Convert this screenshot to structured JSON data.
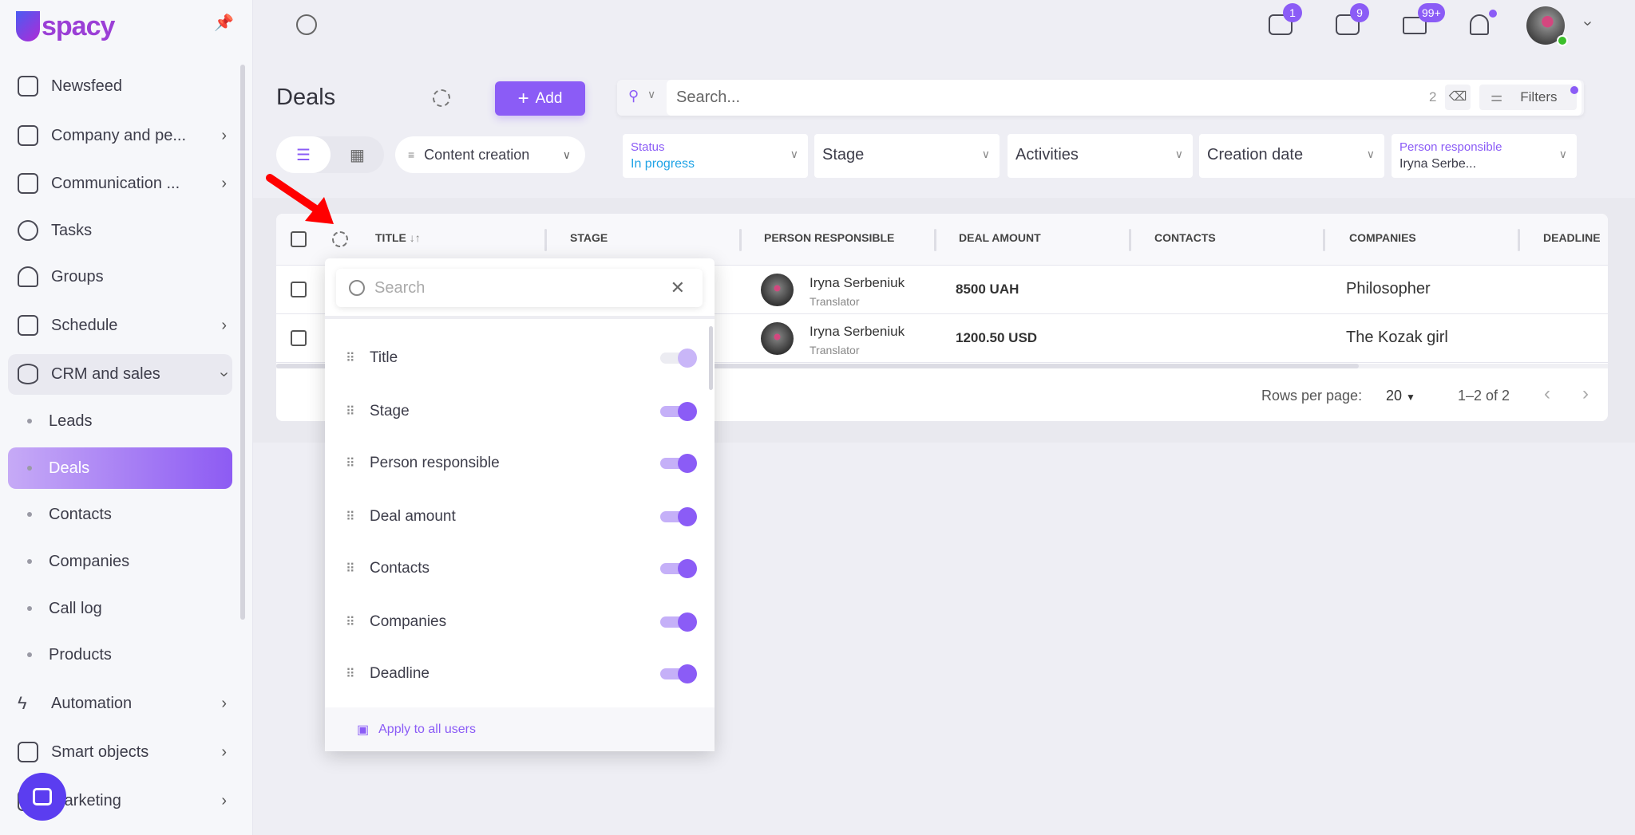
{
  "app": {
    "logo": "uspacy",
    "accent": "#8b5cf6"
  },
  "sidebar": {
    "items": [
      {
        "label": "Newsfeed",
        "icon": "home-icon",
        "chevron": false
      },
      {
        "label": "Company and pe...",
        "icon": "building-icon",
        "chevron": true
      },
      {
        "label": "Communication ...",
        "icon": "chat-edit-icon",
        "chevron": true
      },
      {
        "label": "Tasks",
        "icon": "check-circle-icon",
        "chevron": false
      },
      {
        "label": "Groups",
        "icon": "users-icon",
        "chevron": false
      },
      {
        "label": "Schedule",
        "icon": "calendar-icon",
        "chevron": true
      },
      {
        "label": "CRM and sales",
        "icon": "database-icon",
        "chevron": "down"
      },
      {
        "label": "Automation",
        "icon": "lightning-icon",
        "chevron": true
      },
      {
        "label": "Smart objects",
        "icon": "smart-object-icon",
        "chevron": true
      },
      {
        "label": "Marketing",
        "icon": "megaphone-icon",
        "chevron": true
      }
    ],
    "crm_sub": [
      "Leads",
      "Deals",
      "Contacts",
      "Companies",
      "Call log",
      "Products"
    ],
    "active": "Deals"
  },
  "topbar": {
    "badges": {
      "chat": "1",
      "messages": "9",
      "mail": "99+"
    },
    "bell_dot": true,
    "avatar_status": "online"
  },
  "page": {
    "title": "Deals",
    "add_label": "Add",
    "search_placeholder": "Search...",
    "filter_count": "2",
    "filters_label": "Filters",
    "view_mode": "list",
    "pipeline": "Content creation"
  },
  "filters": [
    {
      "label": "Status",
      "value": "In progress"
    },
    {
      "label": "",
      "value": "Stage"
    },
    {
      "label": "",
      "value": "Activities"
    },
    {
      "label": "",
      "value": "Creation date"
    },
    {
      "label": "Person responsible",
      "value": "Iryna Serbe..."
    }
  ],
  "table": {
    "columns": [
      "TITLE",
      "STAGE",
      "PERSON RESPONSIBLE",
      "DEAL AMOUNT",
      "CONTACTS",
      "COMPANIES",
      "DEADLINE"
    ],
    "sort_icon": "↓↑",
    "rows": [
      {
        "person": "Iryna Serbeniuk",
        "role": "Translator",
        "amount": "8500 UAH",
        "company": "Philosopher"
      },
      {
        "person": "Iryna Serbeniuk",
        "role": "Translator",
        "amount": "1200.50 USD",
        "company": "The Kozak girl"
      }
    ],
    "rows_per_page_label": "Rows per page:",
    "rows_per_page": "20",
    "range": "1–2 of 2"
  },
  "column_panel": {
    "search_placeholder": "Search",
    "items": [
      {
        "label": "Title",
        "on": true,
        "disabled": true
      },
      {
        "label": "Stage",
        "on": true
      },
      {
        "label": "Person responsible",
        "on": true
      },
      {
        "label": "Deal amount",
        "on": true
      },
      {
        "label": "Contacts",
        "on": true
      },
      {
        "label": "Companies",
        "on": true
      },
      {
        "label": "Deadline",
        "on": true
      }
    ],
    "apply_label": "Apply to all users"
  }
}
